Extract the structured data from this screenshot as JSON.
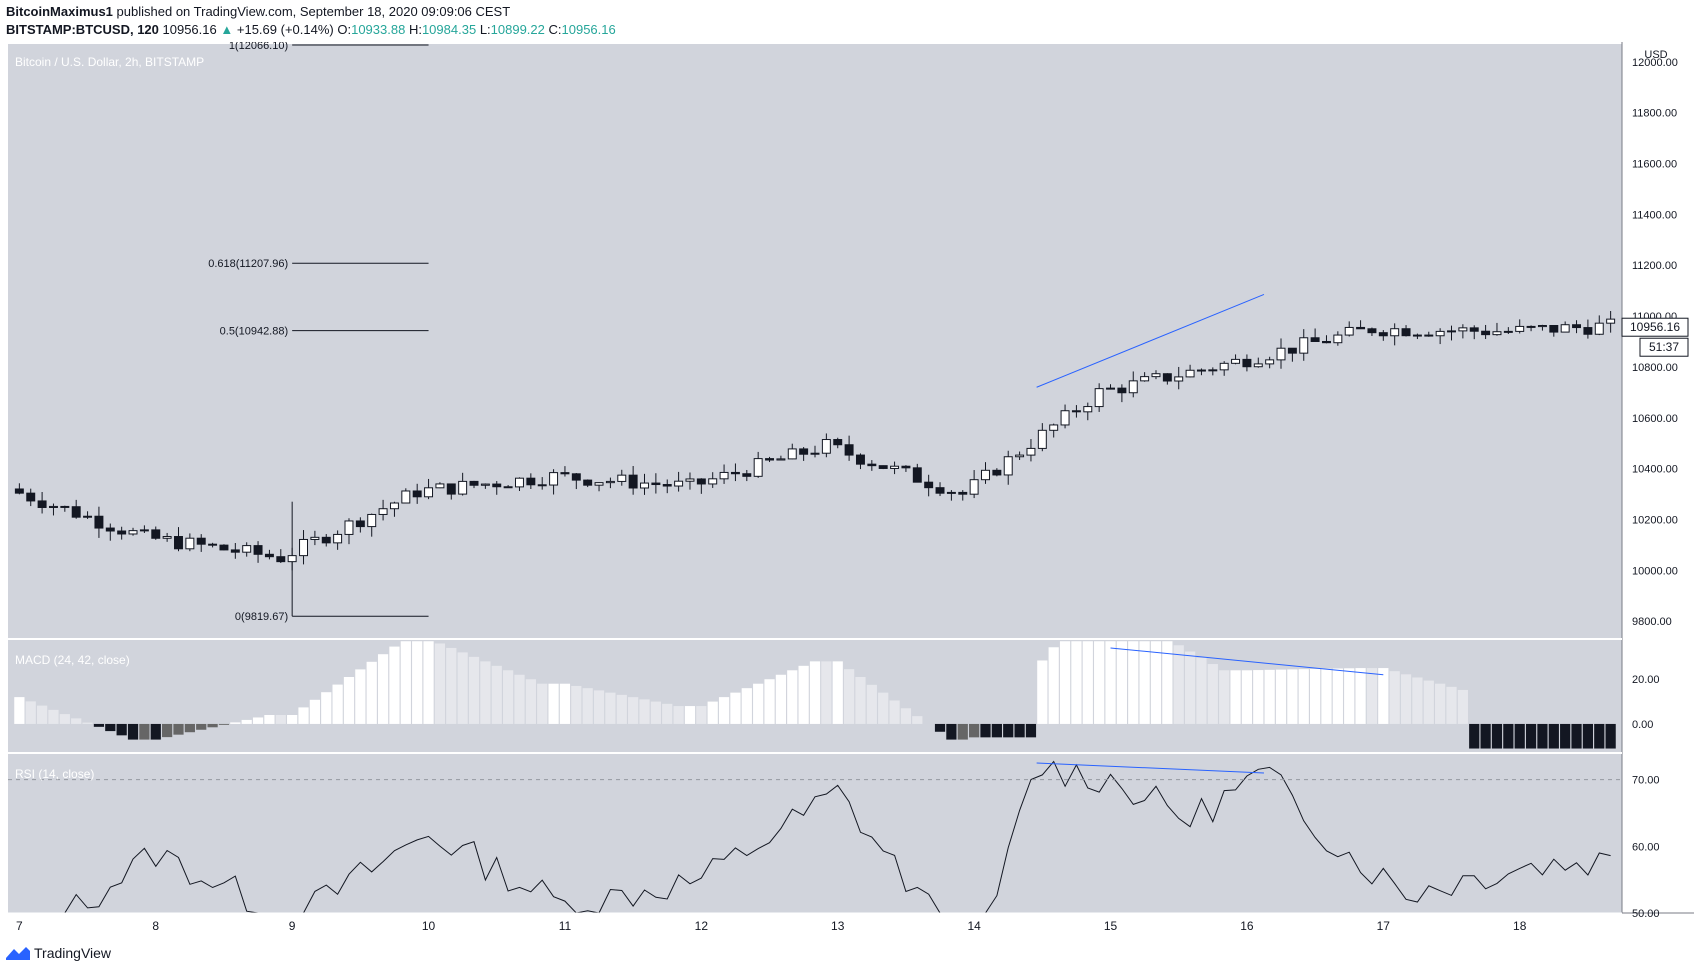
{
  "header": {
    "author": "BitcoinMaximus1",
    "published_text": "published on TradingView.com, September 18, 2020 09:09:06 CEST",
    "symbol": "BITSTAMP:BTCUSD, 120",
    "price": "10956.16",
    "change": "+15.69 (+0.14%)",
    "o_label": "O:",
    "o": "10933.88",
    "h_label": "H:",
    "h": "10984.35",
    "l_label": "L:",
    "l": "10899.22",
    "c_label": "C:",
    "c": "10956.16"
  },
  "footer": {
    "brand": "TradingView"
  },
  "colors": {
    "background": "#d1d4dc",
    "candle_up": "#ffffff",
    "candle_down": "#131722",
    "trendline": "#2962ff",
    "macd_pos_rising": "#ffffff",
    "macd_pos_falling": "#e6e7ec",
    "macd_neg_falling": "#131722",
    "macd_neg_rising": "#666666"
  },
  "chart_data": [
    {
      "type": "candlestick",
      "title": "Bitcoin / U.S. Dollar, 2h, BITSTAMP",
      "currency": "USD",
      "last_price": "10956.16",
      "countdown": "51:37",
      "y_ticks": [
        "12000.00",
        "11800.00",
        "11600.00",
        "11400.00",
        "11200.00",
        "11000.00",
        "10800.00",
        "10600.00",
        "10400.00",
        "10200.00",
        "10000.00",
        "9800.00"
      ],
      "ylim": [
        9730,
        12070
      ],
      "x_ticks": [
        "7",
        "8",
        "9",
        "10",
        "11",
        "12",
        "13",
        "14",
        "15",
        "16",
        "17",
        "18"
      ],
      "x_tick_hours": [
        0,
        24,
        48,
        72,
        96,
        120,
        144,
        168,
        192,
        216,
        240,
        264
      ],
      "xlim_hours": [
        -2,
        282
      ],
      "anchors_hours": [
        0,
        24,
        48,
        72,
        96,
        120,
        144,
        168,
        192,
        216,
        240,
        264,
        280
      ],
      "anchors_price": [
        10320,
        10130,
        10050,
        10310,
        10370,
        10330,
        10490,
        10300,
        10700,
        10820,
        10950,
        10940,
        10960
      ],
      "fib_levels": [
        {
          "label": "1(12066.10)",
          "value": 12066.1
        },
        {
          "label": "0.618(11207.96)",
          "value": 11207.96
        },
        {
          "label": "0.5(10942.88)",
          "value": 10942.88
        },
        {
          "label": "0(9819.67)",
          "value": 9819.67
        }
      ],
      "fib_range_hours": [
        48,
        72
      ],
      "trendline": {
        "x_hours": [
          179,
          219
        ],
        "y": [
          10720,
          11085
        ]
      }
    },
    {
      "type": "bar",
      "title": "MACD (24, 42, close)",
      "y_ticks": [
        "20.00",
        "0.00"
      ],
      "ylim": [
        -13,
        38
      ],
      "trendline": {
        "x_hours": [
          192,
          240
        ],
        "y": [
          34,
          22
        ]
      }
    },
    {
      "type": "line",
      "title": "RSI (14, close)",
      "y_ticks": [
        "70.00",
        "60.00",
        "50.00"
      ],
      "ylim": [
        50,
        74
      ],
      "anchors_hours": [
        0,
        24,
        48,
        72,
        96,
        120,
        144,
        168,
        179,
        192,
        206,
        219,
        232,
        244,
        264,
        280
      ],
      "anchors_value": [
        45,
        59,
        49,
        62,
        51,
        55,
        68,
        42,
        72,
        70,
        64,
        71,
        60,
        53,
        57,
        58
      ],
      "trendline": {
        "x_hours": [
          179,
          219
        ],
        "y": [
          72.5,
          71
        ]
      }
    }
  ]
}
